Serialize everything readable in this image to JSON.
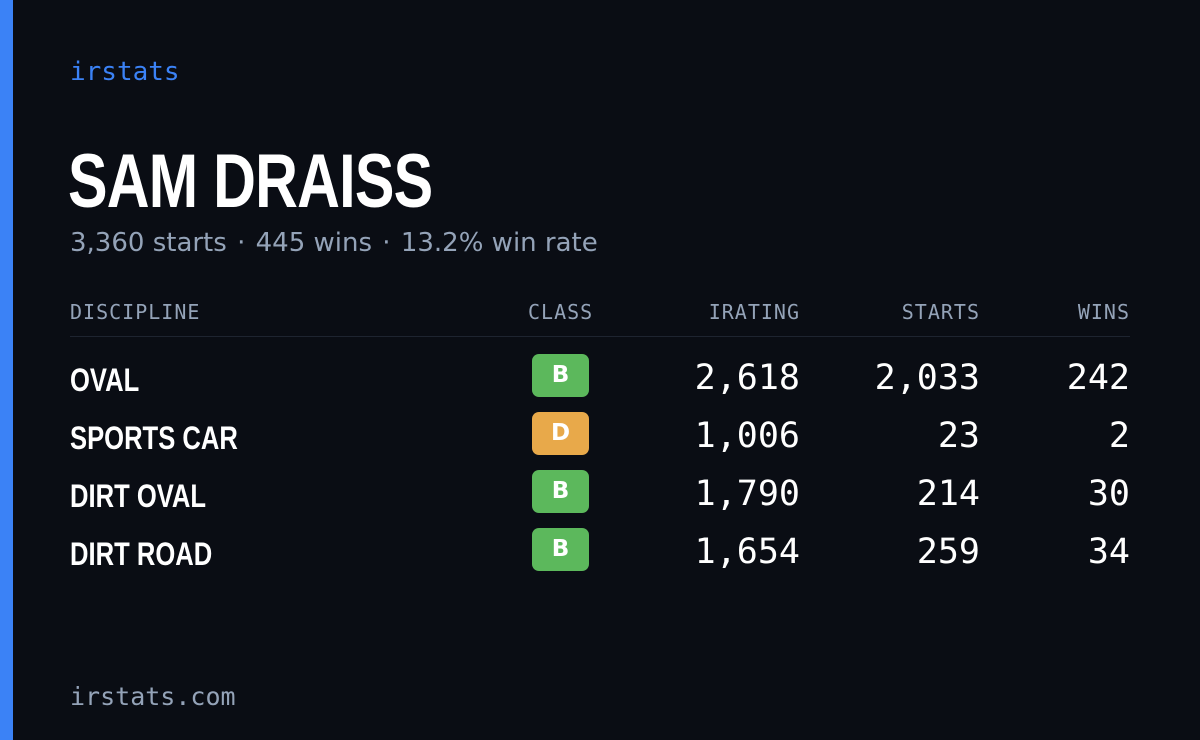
{
  "brand": "irstats",
  "driver": {
    "name": "SAM DRAISS"
  },
  "summary": {
    "starts": "3,360 starts",
    "wins": "445 wins",
    "win_rate": "13.2% win rate",
    "separator": "·"
  },
  "table": {
    "headers": {
      "discipline": "DISCIPLINE",
      "class": "CLASS",
      "irating": "IRATING",
      "starts": "STARTS",
      "wins": "WINS"
    },
    "rows": [
      {
        "discipline": "OVAL",
        "class": "B",
        "class_color": "#5cb85c",
        "irating": "2,618",
        "starts": "2,033",
        "wins": "242"
      },
      {
        "discipline": "SPORTS CAR",
        "class": "D",
        "class_color": "#e8a94a",
        "irating": "1,006",
        "starts": "23",
        "wins": "2"
      },
      {
        "discipline": "DIRT OVAL",
        "class": "B",
        "class_color": "#5cb85c",
        "irating": "1,790",
        "starts": "214",
        "wins": "30"
      },
      {
        "discipline": "DIRT ROAD",
        "class": "B",
        "class_color": "#5cb85c",
        "irating": "1,654",
        "starts": "259",
        "wins": "34"
      }
    ]
  },
  "footer": {
    "url": "irstats.com"
  },
  "colors": {
    "accent": "#3b82f6",
    "background": "#0a0d14",
    "muted_text": "#94a3b8",
    "class_b": "#5cb85c",
    "class_d": "#e8a94a"
  }
}
